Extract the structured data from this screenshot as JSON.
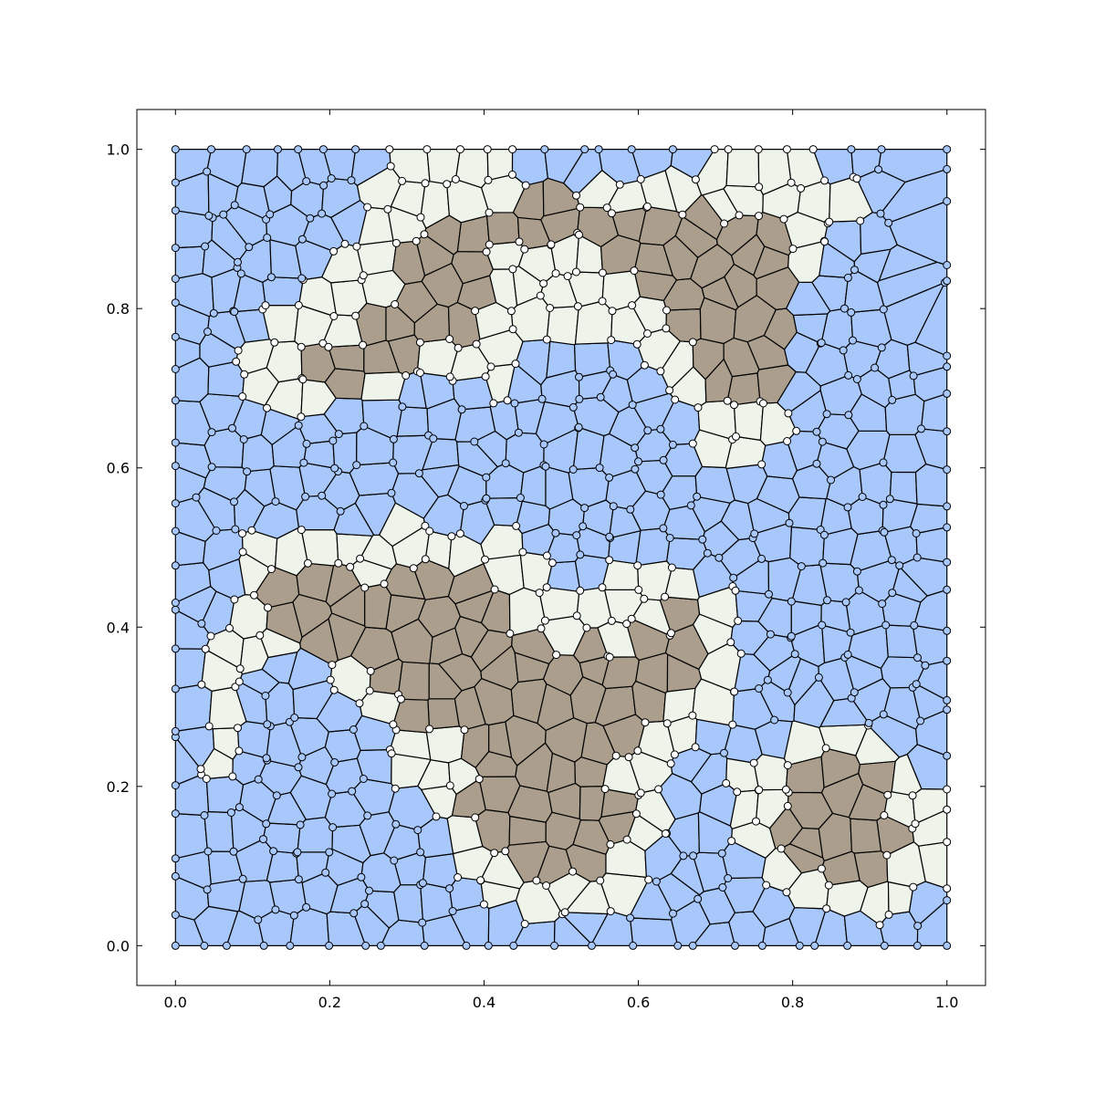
{
  "chart_data": {
    "type": "voronoi-mesh",
    "title": "",
    "xlabel": "",
    "ylabel": "",
    "xlim": [
      -0.05,
      1.05
    ],
    "ylim": [
      -0.05,
      1.05
    ],
    "grid": false,
    "xticks": [
      {
        "value": 0.0,
        "label": "0.0"
      },
      {
        "value": 0.2,
        "label": "0.2"
      },
      {
        "value": 0.4,
        "label": "0.4"
      },
      {
        "value": 0.6,
        "label": "0.6"
      },
      {
        "value": 0.8,
        "label": "0.8"
      },
      {
        "value": 1.0,
        "label": "1.0"
      }
    ],
    "yticks": [
      {
        "value": 0.0,
        "label": "0.0"
      },
      {
        "value": 0.2,
        "label": "0.2"
      },
      {
        "value": 0.4,
        "label": "0.4"
      },
      {
        "value": 0.6,
        "label": "0.6"
      },
      {
        "value": 0.8,
        "label": "0.8"
      },
      {
        "value": 1.0,
        "label": "1.0"
      }
    ],
    "domain": {
      "xmin": 0.0,
      "xmax": 1.0,
      "ymin": 0.0,
      "ymax": 1.0
    },
    "cell_count": 620,
    "colors": {
      "blue": "#a8c8fb",
      "white": "#eef4ea",
      "brown": "#ab9e8c",
      "edge": "#000000",
      "node_blue": "#a8c8fb",
      "node_white": "#ffffff"
    },
    "brown_regions": [
      {
        "polygon": [
          [
            0.3,
            0.89
          ],
          [
            0.38,
            0.93
          ],
          [
            0.47,
            0.94
          ],
          [
            0.58,
            0.93
          ],
          [
            0.67,
            0.92
          ],
          [
            0.76,
            0.91
          ],
          [
            0.81,
            0.86
          ],
          [
            0.8,
            0.74
          ],
          [
            0.74,
            0.66
          ],
          [
            0.67,
            0.72
          ],
          [
            0.61,
            0.84
          ],
          [
            0.53,
            0.88
          ],
          [
            0.43,
            0.88
          ],
          [
            0.39,
            0.78
          ],
          [
            0.3,
            0.72
          ],
          [
            0.2,
            0.7
          ],
          [
            0.16,
            0.71
          ],
          [
            0.22,
            0.76
          ],
          [
            0.28,
            0.84
          ]
        ]
      },
      {
        "polygon": [
          [
            0.08,
            0.45
          ],
          [
            0.14,
            0.48
          ],
          [
            0.22,
            0.46
          ],
          [
            0.33,
            0.5
          ],
          [
            0.4,
            0.46
          ],
          [
            0.46,
            0.4
          ],
          [
            0.56,
            0.37
          ],
          [
            0.66,
            0.43
          ],
          [
            0.7,
            0.35
          ],
          [
            0.62,
            0.3
          ],
          [
            0.57,
            0.22
          ],
          [
            0.59,
            0.12
          ],
          [
            0.51,
            0.08
          ],
          [
            0.43,
            0.11
          ],
          [
            0.38,
            0.18
          ],
          [
            0.35,
            0.26
          ],
          [
            0.28,
            0.31
          ],
          [
            0.22,
            0.35
          ],
          [
            0.16,
            0.39
          ]
        ]
      },
      {
        "polygon": [
          [
            0.79,
            0.21
          ],
          [
            0.86,
            0.24
          ],
          [
            0.92,
            0.22
          ],
          [
            0.95,
            0.15
          ],
          [
            0.94,
            0.09
          ],
          [
            0.87,
            0.08
          ],
          [
            0.8,
            0.1
          ],
          [
            0.78,
            0.15
          ]
        ]
      }
    ],
    "white_regions": [
      {
        "polygon": [
          [
            0.03,
            0.66
          ],
          [
            0.12,
            0.78
          ],
          [
            0.21,
            0.86
          ],
          [
            0.26,
            0.99
          ],
          [
            0.4,
            0.99
          ],
          [
            0.52,
            0.97
          ],
          [
            0.62,
            0.98
          ],
          [
            0.72,
            0.97
          ],
          [
            0.83,
            0.98
          ],
          [
            0.9,
            0.93
          ],
          [
            0.82,
            0.84
          ],
          [
            0.8,
            0.72
          ],
          [
            0.81,
            0.63
          ],
          [
            0.72,
            0.59
          ],
          [
            0.66,
            0.66
          ],
          [
            0.57,
            0.76
          ],
          [
            0.48,
            0.78
          ],
          [
            0.42,
            0.7
          ],
          [
            0.33,
            0.7
          ],
          [
            0.21,
            0.68
          ],
          [
            0.14,
            0.66
          ],
          [
            0.07,
            0.7
          ]
        ]
      },
      {
        "polygon": [
          [
            0.02,
            0.15
          ],
          [
            0.04,
            0.27
          ],
          [
            0.06,
            0.4
          ],
          [
            0.08,
            0.5
          ],
          [
            0.18,
            0.52
          ],
          [
            0.29,
            0.53
          ],
          [
            0.37,
            0.54
          ],
          [
            0.46,
            0.5
          ],
          [
            0.52,
            0.45
          ],
          [
            0.61,
            0.5
          ],
          [
            0.7,
            0.45
          ],
          [
            0.74,
            0.37
          ],
          [
            0.71,
            0.29
          ],
          [
            0.64,
            0.25
          ],
          [
            0.62,
            0.13
          ],
          [
            0.57,
            0.04
          ],
          [
            0.49,
            0.03
          ],
          [
            0.42,
            0.05
          ],
          [
            0.36,
            0.12
          ],
          [
            0.31,
            0.17
          ],
          [
            0.28,
            0.24
          ],
          [
            0.24,
            0.32
          ],
          [
            0.18,
            0.37
          ],
          [
            0.1,
            0.36
          ],
          [
            0.06,
            0.22
          ]
        ]
      },
      {
        "polygon": [
          [
            0.67,
            0.26
          ],
          [
            0.77,
            0.24
          ],
          [
            0.86,
            0.28
          ],
          [
            0.95,
            0.26
          ],
          [
            0.99,
            0.18
          ],
          [
            0.99,
            0.06
          ],
          [
            0.93,
            0.03
          ],
          [
            0.84,
            0.05
          ],
          [
            0.77,
            0.09
          ],
          [
            0.74,
            0.15
          ],
          [
            0.71,
            0.21
          ]
        ]
      }
    ]
  }
}
